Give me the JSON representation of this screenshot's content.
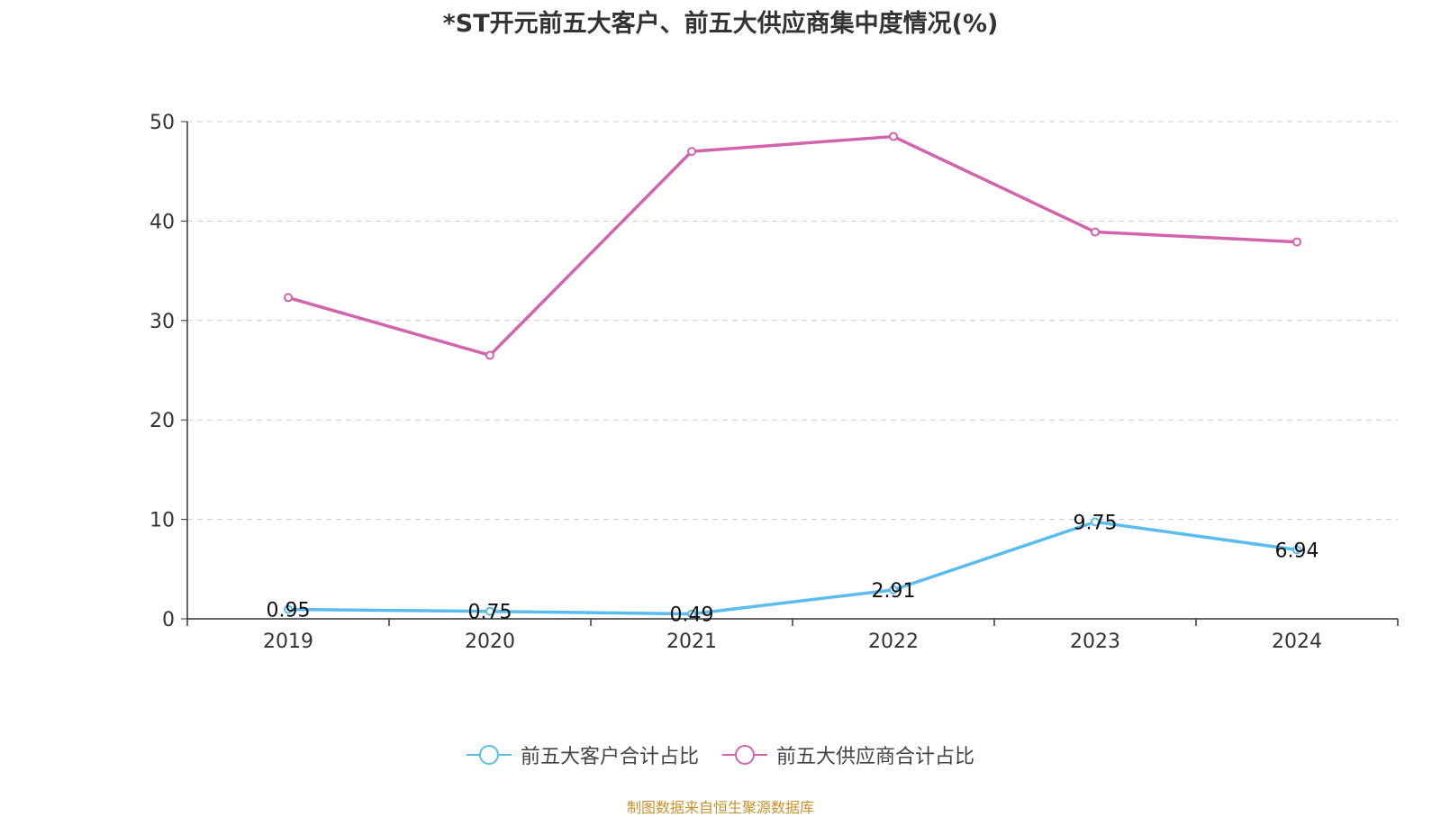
{
  "colors": {
    "series1": "#5bbcef",
    "series2": "#d264ad",
    "grid": "#cccccc",
    "axis": "#333333",
    "source": "#c8922e"
  },
  "source_note": "制图数据来自恒生聚源数据库",
  "chart_data": {
    "type": "line",
    "title": "*ST开元前五大客户、前五大供应商集中度情况(%)",
    "categories": [
      "2019",
      "2020",
      "2021",
      "2022",
      "2023",
      "2024"
    ],
    "ylim": [
      0,
      50
    ],
    "yticks": [
      "0",
      "10",
      "20",
      "30",
      "40",
      "50"
    ],
    "grid": true,
    "legend": "bottom",
    "series": [
      {
        "name": "前五大客户合计占比",
        "values": [
          0.95,
          0.75,
          0.49,
          2.91,
          9.75,
          6.94
        ],
        "labels": [
          "0.95",
          "0.75",
          "0.49",
          "2.91",
          "9.75",
          "6.94"
        ],
        "color": "#5bbcef"
      },
      {
        "name": "前五大供应商合计占比",
        "values": [
          32.3,
          26.5,
          47.0,
          48.5,
          38.9,
          37.9
        ],
        "color": "#d264ad"
      }
    ]
  }
}
